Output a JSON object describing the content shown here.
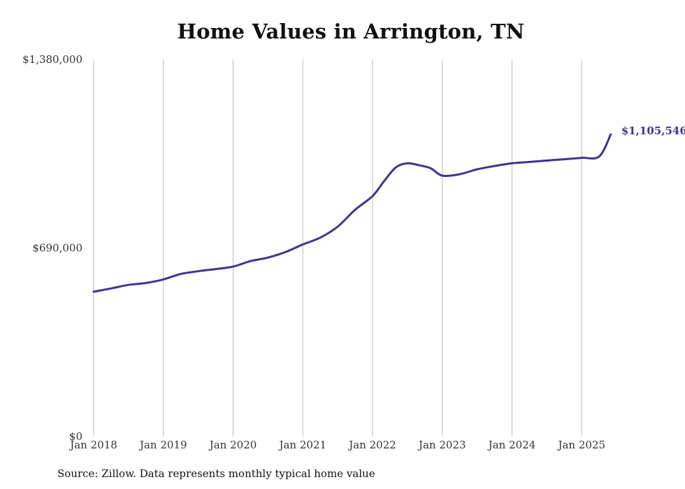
{
  "chart_data": {
    "type": "line",
    "title": "Home Values in Arrington, TN",
    "xlabel": "",
    "ylabel": "",
    "x_tick_labels": [
      "Jan 2018",
      "Jan 2019",
      "Jan 2020",
      "Jan 2021",
      "Jan 2022",
      "Jan 2023",
      "Jan 2024",
      "Jan 2025"
    ],
    "y_tick_labels": [
      "$0",
      "$690,000",
      "$1,380,000"
    ],
    "ylim": [
      0,
      1380000
    ],
    "xlim": [
      "2018-01",
      "2025-06"
    ],
    "grid": "vertical",
    "end_label": "$1,105,546",
    "line_color": "#3d3590",
    "series": [
      {
        "x": [
          "2018-01",
          "2018-04",
          "2018-07",
          "2018-10",
          "2019-01",
          "2019-04",
          "2019-07",
          "2019-10",
          "2020-01",
          "2020-04",
          "2020-07",
          "2020-10",
          "2021-01",
          "2021-04",
          "2021-07",
          "2021-10",
          "2022-01",
          "2022-03",
          "2022-05",
          "2022-07",
          "2022-09",
          "2022-11",
          "2023-01",
          "2023-04",
          "2023-07",
          "2023-10",
          "2024-01",
          "2024-04",
          "2024-07",
          "2024-10",
          "2025-01",
          "2025-04",
          "2025-06"
        ],
        "values": [
          530000,
          542000,
          555000,
          562000,
          575000,
          595000,
          605000,
          613000,
          622000,
          642000,
          655000,
          675000,
          703000,
          728000,
          768000,
          830000,
          880000,
          935000,
          985000,
          1000000,
          993000,
          982000,
          955000,
          960000,
          978000,
          990000,
          1000000,
          1005000,
          1010000,
          1015000,
          1020000,
          1025000,
          1105546
        ]
      }
    ],
    "source_note": "Source: Zillow. Data represents monthly typical home value"
  }
}
